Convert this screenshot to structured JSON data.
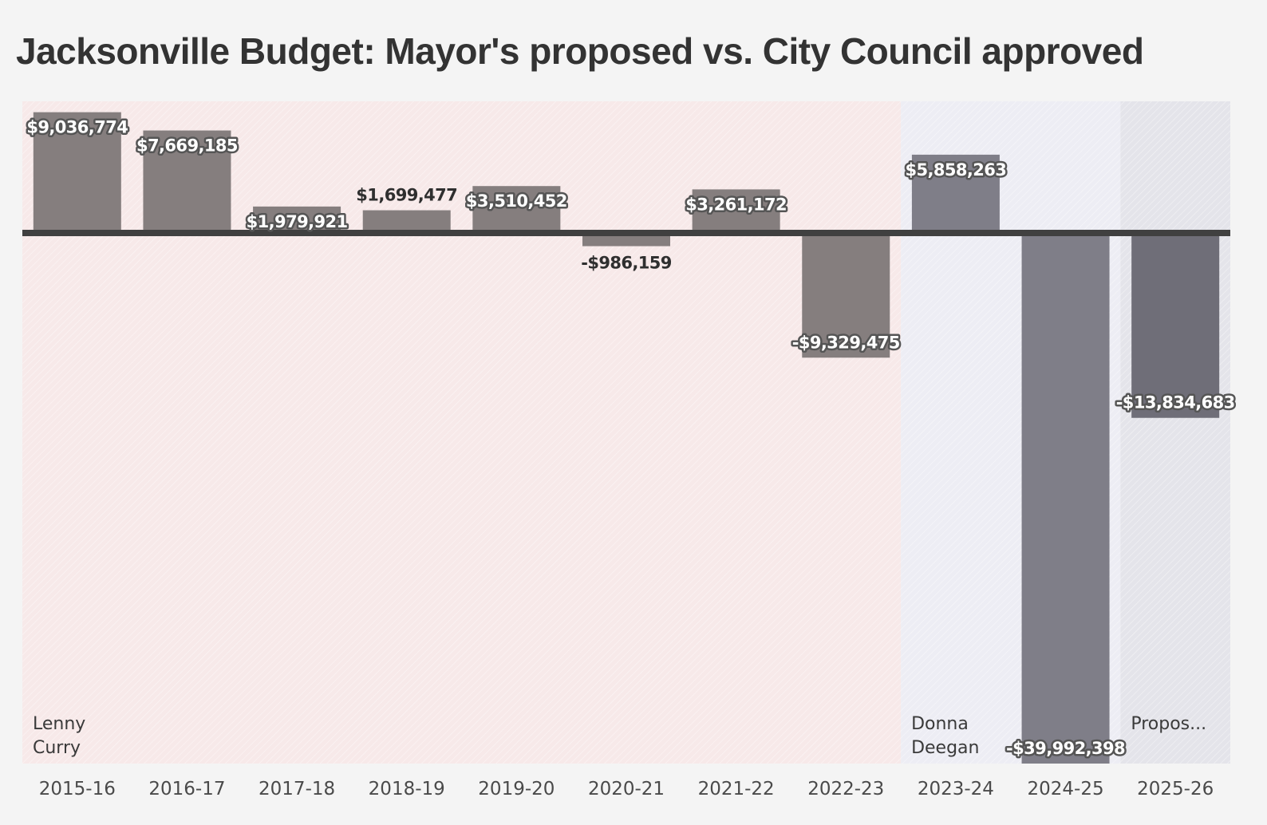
{
  "title": "Jacksonville Budget: Mayor's proposed vs. City Council approved",
  "chart_data": {
    "type": "bar",
    "title": "Jacksonville Budget: Mayor's proposed vs. City Council approved",
    "xlabel": "",
    "ylabel": "",
    "categories": [
      "2015-16",
      "2016-17",
      "2017-18",
      "2018-19",
      "2019-20",
      "2020-21",
      "2021-22",
      "2022-23",
      "2023-24",
      "2024-25",
      "2025-26"
    ],
    "values": [
      9036774,
      7669185,
      1979921,
      1699477,
      3510452,
      -986159,
      3261172,
      -9329475,
      5858263,
      -39992398,
      -13834683
    ],
    "data_labels": [
      "$9,036,774",
      "$7,669,185",
      "$1,979,921",
      "$1,699,477",
      "$3,510,452",
      "-$986,159",
      "$3,261,172",
      "-$9,329,475",
      "$5,858,263",
      "-$39,992,398",
      "-$13,834,683"
    ],
    "ylim": [
      -40000000,
      10000000
    ],
    "grid": false,
    "zero_line": true,
    "regions": [
      {
        "label_lines": [
          "Lenny",
          "Curry"
        ],
        "start": "2015-16",
        "end": "2022-23",
        "color": "#f7e9e9"
      },
      {
        "label_lines": [
          "Donna",
          "Deegan"
        ],
        "start": "2023-24",
        "end": "2024-25",
        "color": "#ededf4"
      },
      {
        "label_lines": [
          "Propos..."
        ],
        "start": "2025-26",
        "end": "2025-26",
        "color": "#e4e4ea"
      }
    ],
    "colors": {
      "background": "#f4f4f4",
      "bar_curry": "#857e7e",
      "bar_deegan": "#7f7e88",
      "bar_proposed": "#6f6e78",
      "zero_line": "#404040"
    }
  }
}
